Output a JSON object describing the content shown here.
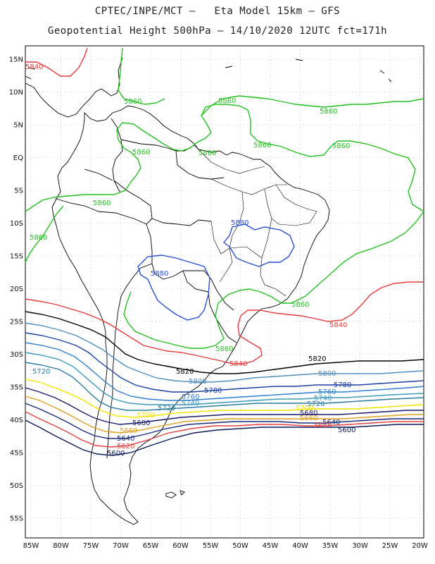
{
  "title_line1": "CPTEC/INPE/MCT –   Eta Model 15km – GFS",
  "title_line2": "Geopotential Height 500hPa – 14/10/2020 12UTC fct=171h",
  "lat_labels": [
    "15N",
    "10N",
    "5N",
    "EQ",
    "5S",
    "10S",
    "15S",
    "20S",
    "25S",
    "30S",
    "35S",
    "40S",
    "45S",
    "50S",
    "55S"
  ],
  "lon_labels": [
    "85W",
    "80W",
    "75W",
    "70W",
    "65W",
    "60W",
    "55W",
    "50W",
    "45W",
    "40W",
    "35W",
    "30W",
    "25W",
    "20W"
  ],
  "contour_labels": {
    "c5880": [
      "5880",
      "5880"
    ],
    "c5860": [
      "5860",
      "5860",
      "5860",
      "5860",
      "5860",
      "5860",
      "5860",
      "5860",
      "5860",
      "5860"
    ],
    "c5840": [
      "5840",
      "5840",
      "5840"
    ],
    "c5820": [
      "5820",
      "5820"
    ],
    "c5800": [
      "5800",
      "5800"
    ],
    "c5780": [
      "5780",
      "5780"
    ],
    "c5760": [
      "5760",
      "5760"
    ],
    "c5740": [
      "5740",
      "5740"
    ],
    "c5720": [
      "5720",
      "5720",
      "5720"
    ],
    "c5700": [
      "5700",
      "5700"
    ],
    "c5680": [
      "5680",
      "5680"
    ],
    "c5660": [
      "5660",
      "5660"
    ],
    "c5640": [
      "5640",
      "5640"
    ],
    "c5620": [
      "5620",
      "5620"
    ],
    "c5600": [
      "5600",
      "5600"
    ]
  },
  "colors": {
    "c5880": "#2a4fd8",
    "c5860": "#22c21e",
    "c5840": "#e83a3a",
    "c5820": "#000000",
    "c5800": "#4f8fc0",
    "c5780": "#1b3fa8",
    "c5760": "#2f7fd0",
    "c5740": "#3a9ab8",
    "c5720": "#2a7fa0",
    "c5700": "#f2e400",
    "c5680": "#1a1a6a",
    "c5660": "#e0a020",
    "c5640": "#1a2a7a",
    "c5620": "#e84040",
    "c5600": "#0a1a5a",
    "coast": "#000000",
    "grid": "#999999"
  }
}
